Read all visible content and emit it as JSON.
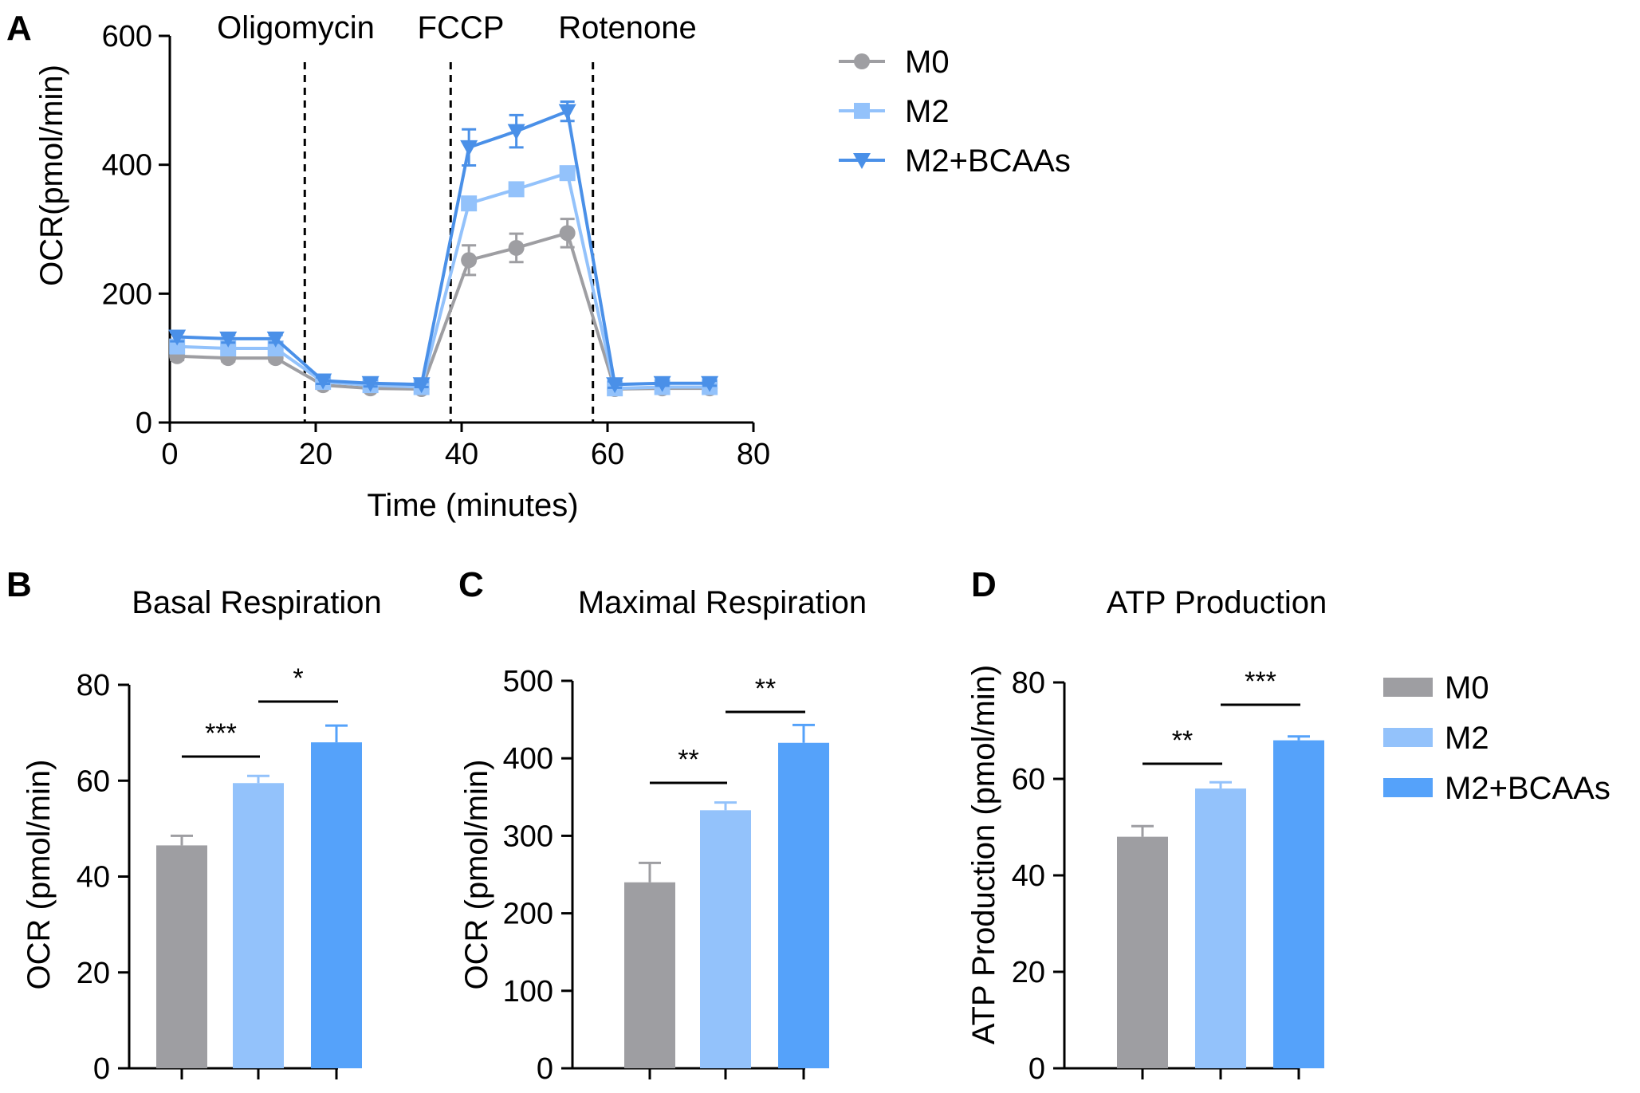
{
  "colors": {
    "M0": "#9e9ea2",
    "M2": "#93c2fb",
    "M2_BCAAs": "#55a2fa",
    "line_M2_BCAAs": "#4a90e8",
    "axis": "#000000"
  },
  "chart_data": [
    {
      "id": "A",
      "type": "line",
      "panel_letter": "A",
      "xlabel": "Time (minutes)",
      "ylabel": "OCR(pmol/min)",
      "xlim": [
        0,
        80
      ],
      "ylim": [
        0,
        600
      ],
      "xticks": [
        "0",
        "20",
        "40",
        "60",
        "80"
      ],
      "yticks": [
        "0",
        "200",
        "400",
        "600"
      ],
      "treatments": [
        {
          "label": "Oligomycin",
          "x": 18.5
        },
        {
          "label": "FCCP",
          "x": 38.5
        },
        {
          "label": "Rotenone",
          "x": 58
        }
      ],
      "x": [
        1,
        8,
        14.5,
        21,
        27.5,
        34.5,
        41,
        47.5,
        54.5,
        61,
        67.5,
        74
      ],
      "series": [
        {
          "name": "M0",
          "marker": "circle",
          "values": [
            103,
            100,
            100,
            58,
            53,
            52,
            252,
            271,
            294,
            52,
            53,
            53
          ],
          "errors": [
            6,
            5,
            5,
            5,
            4,
            4,
            23,
            22,
            22,
            4,
            4,
            4
          ]
        },
        {
          "name": "M2",
          "marker": "square",
          "values": [
            118,
            115,
            115,
            63,
            58,
            55,
            340,
            362,
            387,
            53,
            55,
            55
          ],
          "errors": [
            6,
            6,
            6,
            5,
            4,
            4,
            10,
            9,
            9,
            4,
            4,
            4
          ]
        },
        {
          "name": "M2+BCAAs",
          "marker": "triangle-down",
          "values": [
            133,
            130,
            130,
            65,
            61,
            59,
            427,
            452,
            483,
            59,
            61,
            61
          ],
          "errors": [
            7,
            6,
            6,
            5,
            5,
            4,
            28,
            25,
            15,
            5,
            4,
            4
          ]
        }
      ],
      "legend": [
        "M0",
        "M2",
        "M2+BCAAs"
      ]
    },
    {
      "id": "B",
      "type": "bar",
      "panel_letter": "B",
      "title": "Basal Respiration",
      "ylabel": "OCR (pmol/min)",
      "ylim": [
        0,
        80
      ],
      "yticks": [
        "0",
        "20",
        "40",
        "60",
        "80"
      ],
      "categories": [
        "M0",
        "M2",
        "M2+BCAAs"
      ],
      "values": [
        46.5,
        59.5,
        68
      ],
      "errors": [
        2,
        1.5,
        3.5
      ],
      "significance": [
        {
          "from": 0,
          "to": 1,
          "label": "***"
        },
        {
          "from": 1,
          "to": 2,
          "label": "*"
        }
      ]
    },
    {
      "id": "C",
      "type": "bar",
      "panel_letter": "C",
      "title": "Maximal Respiration",
      "ylabel": "OCR (pmol/min)",
      "ylim": [
        0,
        500
      ],
      "yticks": [
        "0",
        "100",
        "200",
        "300",
        "400",
        "500"
      ],
      "categories": [
        "M0",
        "M2",
        "M2+BCAAs"
      ],
      "values": [
        240,
        333,
        420
      ],
      "errors": [
        25,
        10,
        23
      ],
      "significance": [
        {
          "from": 0,
          "to": 1,
          "label": "**"
        },
        {
          "from": 1,
          "to": 2,
          "label": "**"
        }
      ]
    },
    {
      "id": "D",
      "type": "bar",
      "panel_letter": "D",
      "title": "ATP Production",
      "ylabel": "ATP Production (pmol/min)",
      "ylim": [
        0,
        80
      ],
      "yticks": [
        "0",
        "20",
        "40",
        "60",
        "80"
      ],
      "categories": [
        "M0",
        "M2",
        "M2+BCAAs"
      ],
      "values": [
        48,
        58,
        68
      ],
      "errors": [
        2.2,
        1.3,
        0.8
      ],
      "significance": [
        {
          "from": 0,
          "to": 1,
          "label": "**"
        },
        {
          "from": 1,
          "to": 2,
          "label": "***"
        }
      ],
      "legend": [
        "M0",
        "M2",
        "M2+BCAAs"
      ]
    }
  ]
}
